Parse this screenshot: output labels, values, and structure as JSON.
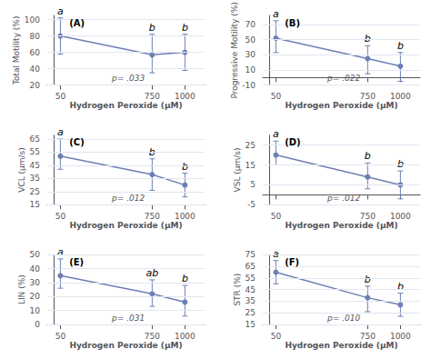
{
  "chart_data": [
    {
      "type": "line",
      "title": "(A)",
      "xlabel": "Hydrogen Peroxide (μM)",
      "ylabel": "Total Motility (%)",
      "x": [
        50,
        750,
        1000
      ],
      "values": [
        80,
        57,
        60
      ],
      "yerr_upper": [
        22,
        25,
        22
      ],
      "yerr_lower": [
        22,
        22,
        22
      ],
      "point_labels": [
        "a",
        "b",
        "b"
      ],
      "annotation": "p= .033",
      "xlim": [
        -50,
        1150
      ],
      "xticks": [
        50,
        750,
        1000
      ],
      "ylim": [
        20,
        105
      ],
      "yticks": [
        20,
        40,
        60,
        80,
        100
      ],
      "color": "#6e7fb5",
      "marker": "circle",
      "grid": true
    },
    {
      "type": "line",
      "title": "(B)",
      "xlabel": "Hydrogen Peroxide (μM)",
      "ylabel": "Progressive Motility (%)",
      "x": [
        50,
        750,
        1000
      ],
      "values": [
        52,
        25,
        15
      ],
      "yerr_upper": [
        23,
        17,
        18
      ],
      "yerr_lower": [
        19,
        20,
        20
      ],
      "point_labels": [
        "a",
        "b",
        "b"
      ],
      "annotation": "p= .022",
      "xlim": [
        -50,
        1150
      ],
      "xticks": [
        50,
        750,
        1000
      ],
      "ylim": [
        -10,
        82
      ],
      "yticks": [
        -10,
        10,
        30,
        50,
        70
      ],
      "color": "#6e7fb5",
      "marker": "circle",
      "grid": true
    },
    {
      "type": "line",
      "title": "(C)",
      "xlabel": "Hydrogen Peroxide (μM)",
      "ylabel": "VCL (μm/s)",
      "x": [
        50,
        750,
        1000
      ],
      "values": [
        52,
        38,
        30
      ],
      "yerr_upper": [
        13,
        12,
        9
      ],
      "yerr_lower": [
        10,
        12,
        9
      ],
      "point_labels": [
        "a",
        "b",
        "b"
      ],
      "annotation": "p= .012",
      "xlim": [
        -50,
        1150
      ],
      "xticks": [
        50,
        750,
        1000
      ],
      "ylim": [
        15,
        68
      ],
      "yticks": [
        15,
        25,
        35,
        45,
        55,
        65
      ],
      "color": "#6e7fb5",
      "marker": "circle",
      "grid": true
    },
    {
      "type": "line",
      "title": "(D)",
      "xlabel": "Hydrogen Peroxide (μM)",
      "ylabel": "VSL (μm/s)",
      "x": [
        50,
        750,
        1000
      ],
      "values": [
        20,
        9,
        5
      ],
      "yerr_upper": [
        7,
        7,
        7
      ],
      "yerr_lower": [
        5,
        6,
        7
      ],
      "point_labels": [
        "a",
        "b",
        "b"
      ],
      "annotation": "p= .012",
      "xlim": [
        -50,
        1150
      ],
      "xticks": [
        50,
        750,
        1000
      ],
      "ylim": [
        -5,
        30
      ],
      "yticks": [
        -5,
        5,
        15,
        25
      ],
      "color": "#6e7fb5",
      "marker": "circle",
      "grid": true
    },
    {
      "type": "line",
      "title": "(E)",
      "xlabel": "Hydrogen Peroxide (μM)",
      "ylabel": "LIN (%)",
      "x": [
        50,
        750,
        1000
      ],
      "values": [
        35,
        22,
        16
      ],
      "yerr_upper": [
        12,
        10,
        12
      ],
      "yerr_lower": [
        9,
        9,
        10
      ],
      "point_labels": [
        "a",
        "ab",
        "b"
      ],
      "annotation": "p= .031",
      "xlim": [
        -50,
        1150
      ],
      "xticks": [
        50,
        750,
        1000
      ],
      "ylim": [
        0,
        50
      ],
      "yticks": [
        0,
        10,
        20,
        30,
        40,
        50
      ],
      "color": "#6e7fb5",
      "marker": "circle",
      "grid": true
    },
    {
      "type": "line",
      "title": "(F)",
      "xlabel": "Hydrogen Peroxide (μM)",
      "ylabel": "STR (%)",
      "x": [
        50,
        750,
        1000
      ],
      "values": [
        60,
        38,
        32
      ],
      "yerr_upper": [
        10,
        10,
        10
      ],
      "yerr_lower": [
        10,
        12,
        10
      ],
      "point_labels": [
        "a",
        "b",
        "b"
      ],
      "annotation": "p= .010",
      "xlim": [
        -50,
        1150
      ],
      "xticks": [
        50,
        750,
        1000
      ],
      "ylim": [
        15,
        75
      ],
      "yticks": [
        15,
        25,
        35,
        45,
        55,
        65,
        75
      ],
      "color": "#6e7fb5",
      "marker": "circle",
      "grid": true
    }
  ]
}
